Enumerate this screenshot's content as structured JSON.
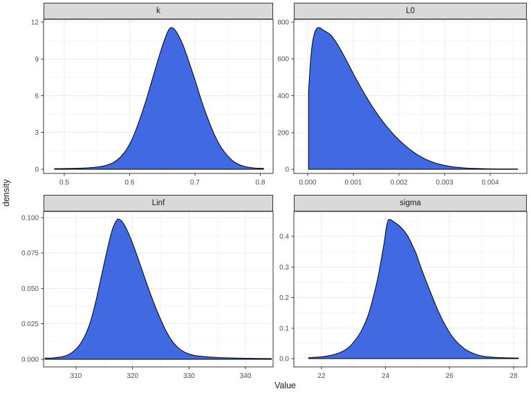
{
  "figure": {
    "y_axis_title": "density",
    "x_axis_title": "Value",
    "colors": {
      "density_fill": "#4169E1",
      "density_stroke": "#000000",
      "strip_background": "#d9d9d9",
      "panel_border": "#333333",
      "grid_major": "#ebebeb",
      "grid_minor": "#f4f4f4",
      "tick_mark": "#333333",
      "tick_text": "#4d4d4d"
    }
  },
  "chart_data": [
    {
      "type": "area",
      "facet": "k",
      "xlabel": "Value",
      "ylabel": "density",
      "xlim": [
        0.4683,
        0.8196
      ],
      "ylim": [
        -0.34,
        12.23
      ],
      "x_ticks": [
        0.5,
        0.6,
        0.7,
        0.8
      ],
      "x_tick_labels": [
        "0.5",
        "0.6",
        "0.7",
        "0.8"
      ],
      "x_minor": [
        0.55,
        0.65,
        0.75
      ],
      "y_ticks": [
        0,
        3,
        6,
        9,
        12
      ],
      "y_tick_labels": [
        "0",
        "3",
        "6",
        "9",
        "12"
      ],
      "y_minor": [
        1.5,
        4.5,
        7.5,
        10.5
      ],
      "points": [
        [
          0.485,
          0.05
        ],
        [
          0.505,
          0.06
        ],
        [
          0.525,
          0.09
        ],
        [
          0.54,
          0.13
        ],
        [
          0.553,
          0.2
        ],
        [
          0.565,
          0.33
        ],
        [
          0.575,
          0.55
        ],
        [
          0.585,
          0.95
        ],
        [
          0.595,
          1.6
        ],
        [
          0.605,
          2.6
        ],
        [
          0.615,
          4.0
        ],
        [
          0.625,
          5.6
        ],
        [
          0.635,
          7.4
        ],
        [
          0.645,
          9.2
        ],
        [
          0.653,
          10.5
        ],
        [
          0.659,
          11.3
        ],
        [
          0.663,
          11.55
        ],
        [
          0.668,
          11.45
        ],
        [
          0.674,
          11.0
        ],
        [
          0.682,
          10.1
        ],
        [
          0.69,
          8.9
        ],
        [
          0.7,
          7.3
        ],
        [
          0.71,
          5.6
        ],
        [
          0.72,
          4.1
        ],
        [
          0.73,
          2.8
        ],
        [
          0.74,
          1.8
        ],
        [
          0.75,
          1.1
        ],
        [
          0.76,
          0.6
        ],
        [
          0.77,
          0.33
        ],
        [
          0.78,
          0.18
        ],
        [
          0.792,
          0.1
        ],
        [
          0.805,
          0.07
        ]
      ]
    },
    {
      "type": "area",
      "facet": "L0",
      "xlabel": "Value",
      "ylabel": "density",
      "xlim": [
        -0.000303,
        0.004803
      ],
      "ylim": [
        -22.5,
        815
      ],
      "x_ticks": [
        0,
        0.001,
        0.002,
        0.003,
        0.004
      ],
      "x_tick_labels": [
        "0.000",
        "0.001",
        "0.002",
        "0.003",
        "0.004"
      ],
      "x_minor": [
        0.0005,
        0.0015,
        0.0025,
        0.0035,
        0.0045
      ],
      "y_ticks": [
        0,
        200,
        400,
        600,
        800
      ],
      "y_tick_labels": [
        "0",
        "200",
        "400",
        "600",
        "800"
      ],
      "y_minor": [
        100,
        300,
        500,
        700
      ],
      "points": [
        [
          2e-05,
          420
        ],
        [
          6e-05,
          580
        ],
        [
          0.0001,
          680
        ],
        [
          0.00015,
          740
        ],
        [
          0.0002,
          766
        ],
        [
          0.00026,
          770
        ],
        [
          0.00032,
          760
        ],
        [
          0.0004,
          748
        ],
        [
          0.0005,
          732
        ],
        [
          0.0006,
          700
        ],
        [
          0.0007,
          660
        ],
        [
          0.0008,
          615
        ],
        [
          0.0009,
          568
        ],
        [
          0.001,
          520
        ],
        [
          0.0011,
          474
        ],
        [
          0.0012,
          430
        ],
        [
          0.0013,
          388
        ],
        [
          0.0014,
          348
        ],
        [
          0.0015,
          310
        ],
        [
          0.0016,
          275
        ],
        [
          0.0017,
          243
        ],
        [
          0.0018,
          213
        ],
        [
          0.0019,
          185
        ],
        [
          0.002,
          160
        ],
        [
          0.0021,
          137
        ],
        [
          0.0022,
          116
        ],
        [
          0.0023,
          97
        ],
        [
          0.0024,
          80
        ],
        [
          0.0025,
          66
        ],
        [
          0.0026,
          53
        ],
        [
          0.0027,
          43
        ],
        [
          0.0028,
          34
        ],
        [
          0.003,
          21
        ],
        [
          0.0032,
          13
        ],
        [
          0.0034,
          8
        ],
        [
          0.0036,
          5
        ],
        [
          0.0039,
          3
        ],
        [
          0.0042,
          2
        ],
        [
          0.0046,
          2
        ]
      ]
    },
    {
      "type": "area",
      "facet": "Linf",
      "xlabel": "Value",
      "ylabel": "density",
      "xlim": [
        304.25,
        344.88
      ],
      "ylim": [
        -0.00537,
        0.10439
      ],
      "x_ticks": [
        310,
        320,
        330,
        340
      ],
      "x_tick_labels": [
        "310",
        "320",
        "330",
        "340"
      ],
      "x_minor": [
        305,
        315,
        325,
        335
      ],
      "y_ticks": [
        0,
        0.025,
        0.05,
        0.075,
        0.1
      ],
      "y_tick_labels": [
        "0.000",
        "0.025",
        "0.050",
        "0.075",
        "0.100"
      ],
      "y_minor": [
        0.0125,
        0.0375,
        0.0625,
        0.0875
      ],
      "points": [
        [
          304.5,
          0.0008
        ],
        [
          306,
          0.001
        ],
        [
          307.5,
          0.0018
        ],
        [
          308.5,
          0.003
        ],
        [
          309.5,
          0.0055
        ],
        [
          310.5,
          0.0095
        ],
        [
          311.5,
          0.016
        ],
        [
          312.5,
          0.026
        ],
        [
          313.5,
          0.041
        ],
        [
          314.5,
          0.059
        ],
        [
          315.5,
          0.077
        ],
        [
          316.3,
          0.09
        ],
        [
          317,
          0.097
        ],
        [
          317.5,
          0.099
        ],
        [
          318.2,
          0.097
        ],
        [
          319,
          0.0915
        ],
        [
          320,
          0.082
        ],
        [
          321,
          0.071
        ],
        [
          322,
          0.0595
        ],
        [
          323,
          0.048
        ],
        [
          324,
          0.0375
        ],
        [
          325,
          0.028
        ],
        [
          326,
          0.0195
        ],
        [
          327,
          0.013
        ],
        [
          328,
          0.0085
        ],
        [
          329,
          0.0055
        ],
        [
          330,
          0.0037
        ],
        [
          331,
          0.0027
        ],
        [
          332.5,
          0.002
        ],
        [
          334,
          0.0015
        ],
        [
          336,
          0.0011
        ],
        [
          339,
          0.0008
        ],
        [
          342,
          0.0006
        ],
        [
          344.6,
          0.0005
        ]
      ]
    },
    {
      "type": "area",
      "facet": "sigma",
      "xlabel": "Value",
      "ylabel": "density",
      "xlim": [
        21.136,
        28.414
      ],
      "ylim": [
        -0.0271,
        0.4814
      ],
      "x_ticks": [
        22,
        24,
        26,
        28
      ],
      "x_tick_labels": [
        "22",
        "24",
        "26",
        "28"
      ],
      "x_minor": [
        23,
        25,
        27
      ],
      "y_ticks": [
        0,
        0.1,
        0.2,
        0.3,
        0.4
      ],
      "y_tick_labels": [
        "0.0",
        "0.1",
        "0.2",
        "0.3",
        "0.4"
      ],
      "y_minor": [
        0.05,
        0.15,
        0.25,
        0.35,
        0.45
      ],
      "points": [
        [
          21.6,
          0.003
        ],
        [
          22.0,
          0.006
        ],
        [
          22.3,
          0.011
        ],
        [
          22.6,
          0.021
        ],
        [
          22.85,
          0.037
        ],
        [
          23.05,
          0.06
        ],
        [
          23.25,
          0.092
        ],
        [
          23.45,
          0.14
        ],
        [
          23.6,
          0.195
        ],
        [
          23.75,
          0.26
        ],
        [
          23.85,
          0.315
        ],
        [
          23.95,
          0.375
        ],
        [
          24.02,
          0.425
        ],
        [
          24.08,
          0.452
        ],
        [
          24.15,
          0.455
        ],
        [
          24.25,
          0.448
        ],
        [
          24.4,
          0.437
        ],
        [
          24.55,
          0.422
        ],
        [
          24.7,
          0.4
        ],
        [
          24.85,
          0.368
        ],
        [
          24.95,
          0.345
        ],
        [
          25.05,
          0.315
        ],
        [
          25.2,
          0.272
        ],
        [
          25.35,
          0.232
        ],
        [
          25.5,
          0.192
        ],
        [
          25.65,
          0.155
        ],
        [
          25.8,
          0.122
        ],
        [
          25.95,
          0.094
        ],
        [
          26.1,
          0.07
        ],
        [
          26.3,
          0.047
        ],
        [
          26.5,
          0.03
        ],
        [
          26.7,
          0.019
        ],
        [
          26.9,
          0.0115
        ],
        [
          27.1,
          0.007
        ],
        [
          27.35,
          0.0045
        ],
        [
          27.6,
          0.003
        ],
        [
          27.9,
          0.0022
        ],
        [
          28.15,
          0.002
        ]
      ]
    }
  ]
}
